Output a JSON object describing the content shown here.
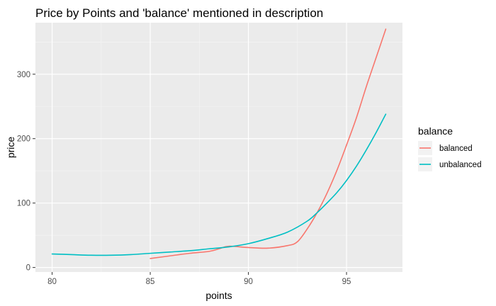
{
  "chart_data": {
    "type": "line",
    "title": "Price by Points and 'balance' mentioned in description",
    "xlabel": "points",
    "ylabel": "price",
    "xlim": [
      79.15,
      97.85
    ],
    "ylim": [
      -7,
      380
    ],
    "x_ticks": [
      80,
      85,
      90,
      95
    ],
    "x_tick_labels": [
      "80",
      "85",
      "90",
      "95"
    ],
    "y_ticks": [
      0,
      100,
      200,
      300
    ],
    "y_tick_labels": [
      "0",
      "100",
      "200",
      "300"
    ],
    "grid": true,
    "background": "#ebebeb",
    "legend": {
      "title": "balance",
      "position": "right"
    },
    "series": [
      {
        "name": "balanced",
        "color": "#f8766d",
        "x": [
          85,
          86,
          87,
          88,
          88.5,
          89,
          90,
          91,
          92,
          92.5,
          93,
          93.5,
          94,
          94.5,
          95,
          95.5,
          96,
          96.5,
          97
        ],
        "y": [
          14,
          18,
          22,
          25,
          29,
          33,
          31,
          30,
          34,
          40,
          60,
          85,
          115,
          150,
          190,
          232,
          280,
          325,
          370
        ]
      },
      {
        "name": "unbalanced",
        "color": "#00bfc4",
        "x": [
          80,
          81,
          82,
          83,
          84,
          85,
          86,
          87,
          88,
          89,
          90,
          91,
          92,
          93,
          93.5,
          94,
          94.5,
          95,
          95.5,
          96,
          96.5,
          97
        ],
        "y": [
          21,
          20,
          19,
          19,
          20,
          22,
          24,
          26,
          29,
          32,
          37,
          45,
          55,
          72,
          85,
          100,
          116,
          135,
          157,
          182,
          209,
          238
        ]
      }
    ]
  }
}
